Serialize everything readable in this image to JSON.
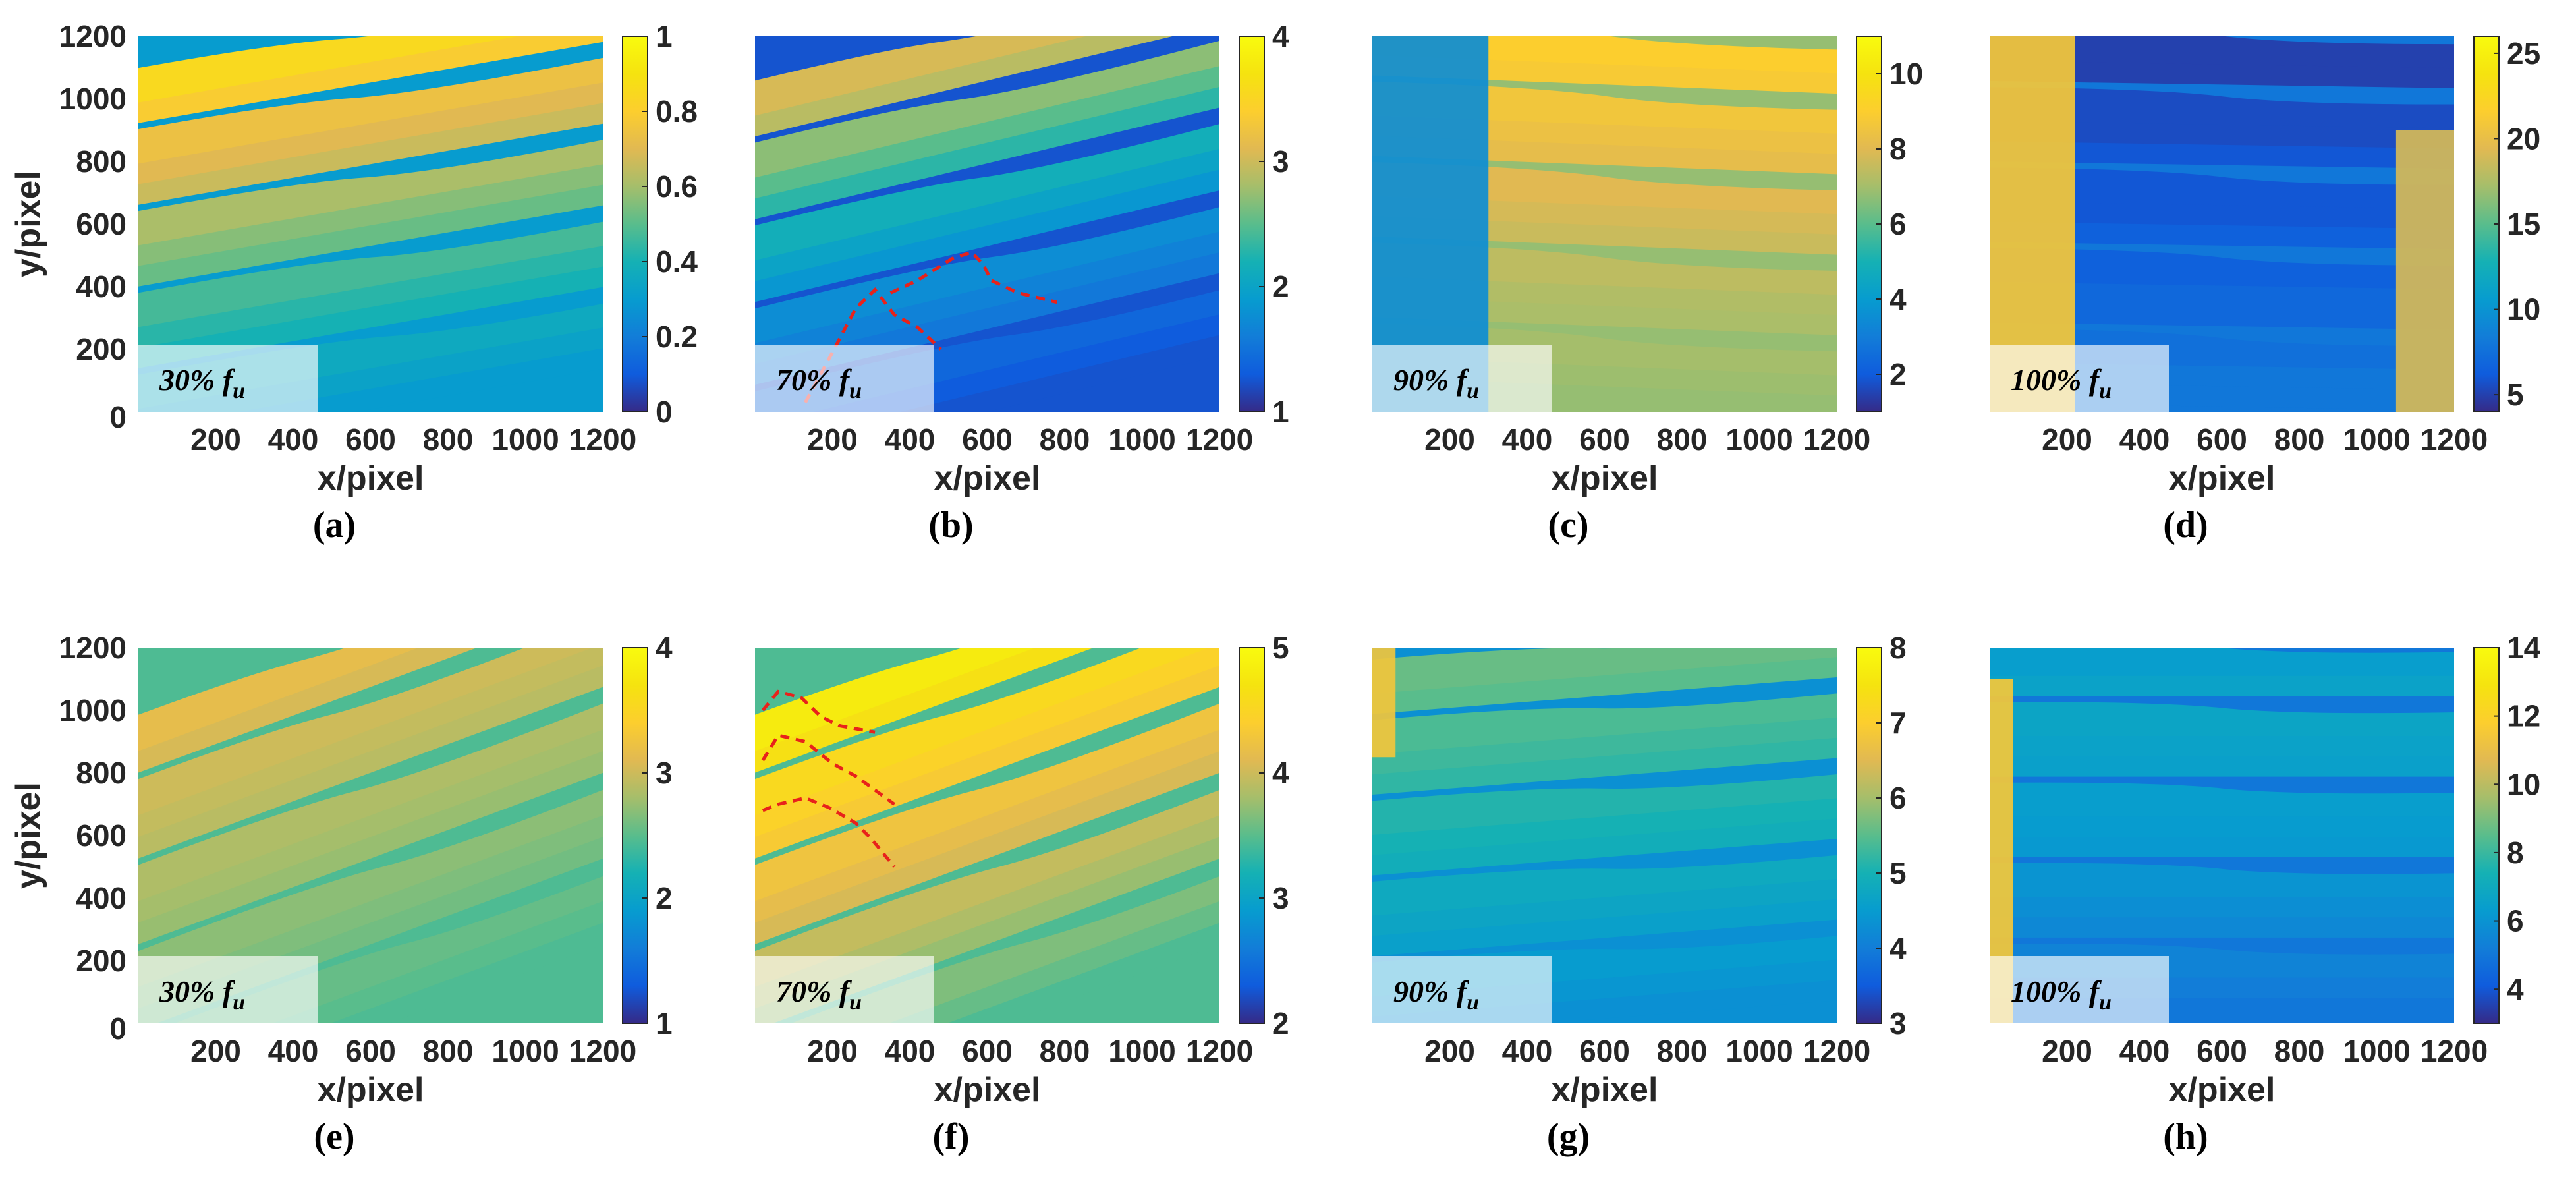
{
  "chart_data": [
    {
      "type": "heatmap",
      "panel": "(a)",
      "annotation": {
        "percent": "30%",
        "symbol": "f",
        "subscript": "u"
      },
      "xlabel": "x/pixel",
      "ylabel": "y/pixel",
      "xlim": [
        0,
        1200
      ],
      "ylim": [
        0,
        1200
      ],
      "xticks": [
        "200",
        "400",
        "600",
        "800",
        "1000",
        "1200"
      ],
      "yticks": [
        "0",
        "200",
        "400",
        "600",
        "800",
        "1000",
        "1200"
      ],
      "colorbar": {
        "min": 0,
        "max": 1,
        "ticks": [
          "0",
          "0.2",
          "0.4",
          "0.6",
          "0.8",
          "1"
        ]
      },
      "field_levels": [
        0.3,
        0.33,
        0.36,
        0.4,
        0.43,
        0.47,
        0.52,
        0.56,
        0.61,
        0.66,
        0.7,
        0.74,
        0.79,
        0.85
      ],
      "field_slope": -0.22,
      "dashed_boundaries": []
    },
    {
      "type": "heatmap",
      "panel": "(b)",
      "annotation": {
        "percent": "70%",
        "symbol": "f",
        "subscript": "u"
      },
      "xlabel": "x/pixel",
      "ylabel": "",
      "xlim": [
        0,
        1200
      ],
      "ylim": [
        0,
        1200
      ],
      "xticks": [
        "200",
        "400",
        "600",
        "800",
        "1000",
        "1200"
      ],
      "yticks": [],
      "colorbar": {
        "min": 1,
        "max": 4,
        "ticks": [
          "1",
          "2",
          "3",
          "4"
        ]
      },
      "field_levels": [
        1.25,
        1.3,
        1.4,
        1.55,
        1.65,
        1.75,
        1.85,
        2.0,
        2.15,
        2.3,
        2.5,
        2.7,
        2.9,
        3.05
      ],
      "field_slope": -0.3,
      "dashed_boundaries": [
        [
          [
            130,
            30
          ],
          [
            200,
            190
          ],
          [
            260,
            330
          ],
          [
            310,
            390
          ],
          [
            360,
            310
          ],
          [
            420,
            270
          ],
          [
            480,
            200
          ]
        ],
        [
          [
            350,
            380
          ],
          [
            420,
            420
          ],
          [
            510,
            490
          ],
          [
            560,
            510
          ],
          [
            590,
            470
          ],
          [
            610,
            420
          ],
          [
            680,
            380
          ],
          [
            780,
            350
          ]
        ]
      ]
    },
    {
      "type": "heatmap",
      "panel": "(c)",
      "annotation": {
        "percent": "90%",
        "symbol": "f",
        "subscript": "u"
      },
      "xlabel": "x/pixel",
      "ylabel": "",
      "xlim": [
        0,
        1200
      ],
      "ylim": [
        0,
        1200
      ],
      "xticks": [
        "200",
        "400",
        "600",
        "800",
        "1000",
        "1200"
      ],
      "yticks": [],
      "colorbar": {
        "min": 1,
        "max": 11,
        "ticks": [
          "2",
          "4",
          "6",
          "8",
          "10"
        ]
      },
      "field_levels": [
        6.8,
        6.9,
        7.0,
        7.1,
        7.2,
        7.4,
        7.6,
        7.8,
        8.0,
        8.2,
        8.4,
        8.6,
        8.8,
        9.0
      ],
      "field_slope": 0.05,
      "side_patches": [
        {
          "side": "left",
          "x0": 0,
          "x1": 300,
          "y0": 0,
          "y1": 1200,
          "value": 3.5
        }
      ],
      "dashed_boundaries": []
    },
    {
      "type": "heatmap",
      "panel": "(d)",
      "annotation": {
        "percent": "100%",
        "symbol": "f",
        "subscript": "u"
      },
      "xlabel": "x/pixel",
      "ylabel": "",
      "xlim": [
        0,
        1200
      ],
      "ylim": [
        0,
        1200
      ],
      "xticks": [
        "200",
        "400",
        "600",
        "800",
        "1000",
        "1200"
      ],
      "yticks": [],
      "colorbar": {
        "min": 4,
        "max": 26,
        "ticks": [
          "5",
          "10",
          "15",
          "20",
          "25"
        ]
      },
      "field_levels": [
        8,
        8,
        7.5,
        7,
        7,
        6.5,
        6.5,
        6,
        6,
        6,
        5.5,
        5.5,
        5,
        5
      ],
      "field_slope": 0.02,
      "side_patches": [
        {
          "side": "left",
          "x0": 0,
          "x1": 220,
          "y0": 0,
          "y1": 1200,
          "value": 21
        },
        {
          "side": "right",
          "x0": 1050,
          "x1": 1200,
          "y0": 0,
          "y1": 900,
          "value": 19
        }
      ],
      "dashed_boundaries": []
    },
    {
      "type": "heatmap",
      "panel": "(e)",
      "annotation": {
        "percent": "30%",
        "symbol": "f",
        "subscript": "u"
      },
      "xlabel": "x/pixel",
      "ylabel": "y/pixel",
      "xlim": [
        0,
        1200
      ],
      "ylim": [
        0,
        1200
      ],
      "xticks": [
        "200",
        "400",
        "600",
        "800",
        "1000",
        "1200"
      ],
      "yticks": [
        "0",
        "200",
        "400",
        "600",
        "800",
        "1000",
        "1200"
      ],
      "colorbar": {
        "min": 1,
        "max": 4,
        "ticks": [
          "1",
          "2",
          "3",
          "4"
        ]
      },
      "field_levels": [
        2.45,
        2.5,
        2.55,
        2.6,
        2.65,
        2.7,
        2.75,
        2.8,
        2.85,
        2.9,
        2.95,
        3.0,
        3.05,
        3.15
      ],
      "field_slope": -0.45,
      "dashed_boundaries": []
    },
    {
      "type": "heatmap",
      "panel": "(f)",
      "annotation": {
        "percent": "70%",
        "symbol": "f",
        "subscript": "u"
      },
      "xlabel": "x/pixel",
      "ylabel": "",
      "xlim": [
        0,
        1200
      ],
      "ylim": [
        0,
        1200
      ],
      "xticks": [
        "200",
        "400",
        "600",
        "800",
        "1000",
        "1200"
      ],
      "yticks": [],
      "colorbar": {
        "min": 2,
        "max": 5,
        "ticks": [
          "2",
          "3",
          "4",
          "5"
        ]
      },
      "field_levels": [
        3.45,
        3.55,
        3.65,
        3.75,
        3.85,
        3.95,
        4.05,
        4.15,
        4.25,
        4.35,
        4.45,
        4.55,
        4.65,
        4.8
      ],
      "field_slope": -0.45,
      "dashed_boundaries": [
        [
          [
            20,
            1000
          ],
          [
            60,
            1060
          ],
          [
            120,
            1040
          ],
          [
            170,
            980
          ],
          [
            220,
            950
          ],
          [
            310,
            930
          ]
        ],
        [
          [
            20,
            840
          ],
          [
            60,
            920
          ],
          [
            130,
            900
          ],
          [
            200,
            830
          ],
          [
            260,
            790
          ],
          [
            360,
            700
          ]
        ],
        [
          [
            20,
            680
          ],
          [
            60,
            700
          ],
          [
            130,
            720
          ],
          [
            190,
            690
          ],
          [
            260,
            640
          ],
          [
            300,
            590
          ],
          [
            360,
            500
          ]
        ]
      ]
    },
    {
      "type": "heatmap",
      "panel": "(g)",
      "annotation": {
        "percent": "90%",
        "symbol": "f",
        "subscript": "u"
      },
      "xlabel": "x/pixel",
      "ylabel": "",
      "xlim": [
        0,
        1200
      ],
      "ylim": [
        0,
        1200
      ],
      "xticks": [
        "200",
        "400",
        "600",
        "800",
        "1000",
        "1200"
      ],
      "yticks": [],
      "colorbar": {
        "min": 3,
        "max": 8,
        "ticks": [
          "3",
          "4",
          "5",
          "6",
          "7",
          "8"
        ]
      },
      "field_levels": [
        4.3,
        4.4,
        4.5,
        4.6,
        4.7,
        4.8,
        4.9,
        5.0,
        5.1,
        5.2,
        5.3,
        5.4,
        5.5,
        5.6
      ],
      "field_slope": -0.1,
      "side_patches": [
        {
          "side": "left",
          "x0": 0,
          "x1": 60,
          "y0": 850,
          "y1": 1200,
          "value": 6.8
        }
      ],
      "dashed_boundaries": []
    },
    {
      "type": "heatmap",
      "panel": "(h)",
      "annotation": {
        "percent": "100%",
        "symbol": "f",
        "subscript": "u"
      },
      "xlabel": "x/pixel",
      "ylabel": "",
      "xlim": [
        0,
        1200
      ],
      "ylim": [
        0,
        1200
      ],
      "xticks": [
        "200",
        "400",
        "600",
        "800",
        "1000",
        "1200"
      ],
      "yticks": [],
      "colorbar": {
        "min": 3,
        "max": 14,
        "ticks": [
          "4",
          "6",
          "8",
          "10",
          "12",
          "14"
        ]
      },
      "field_levels": [
        5.0,
        5.2,
        5.4,
        5.6,
        5.8,
        6.0,
        6.2,
        6.3,
        6.4,
        6.5,
        6.6,
        6.7,
        6.6,
        6.4
      ],
      "field_slope": 0.0,
      "side_patches": [
        {
          "side": "left",
          "x0": 0,
          "x1": 60,
          "y0": 0,
          "y1": 1100,
          "value": 11.5
        }
      ],
      "dashed_boundaries": []
    }
  ]
}
